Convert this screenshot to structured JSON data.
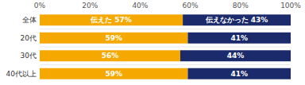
{
  "chart_data": {
    "type": "bar",
    "orientation": "horizontal",
    "stacked": true,
    "data_labels": true,
    "grid": false,
    "categories": [
      "全体",
      "20代",
      "30代",
      "40代以上"
    ],
    "series": [
      {
        "color": "#F5A800",
        "values": [
          57,
          59,
          56,
          59
        ],
        "value_labels": [
          "伝えた 57%",
          "59%",
          "56%",
          "59%"
        ]
      },
      {
        "color": "#1B2A6B",
        "values": [
          43,
          41,
          44,
          41
        ],
        "value_labels": [
          "伝えなかった 43%",
          "41%",
          "44%",
          "41%"
        ]
      }
    ],
    "xlim": [
      0,
      100
    ],
    "xticks": [
      {
        "value": 0,
        "label": "0%"
      },
      {
        "value": 20,
        "label": "20%"
      },
      {
        "value": 40,
        "label": "40%"
      },
      {
        "value": 60,
        "label": "60%"
      },
      {
        "value": 80,
        "label": "80%"
      },
      {
        "value": 100,
        "label": "100%"
      }
    ]
  }
}
